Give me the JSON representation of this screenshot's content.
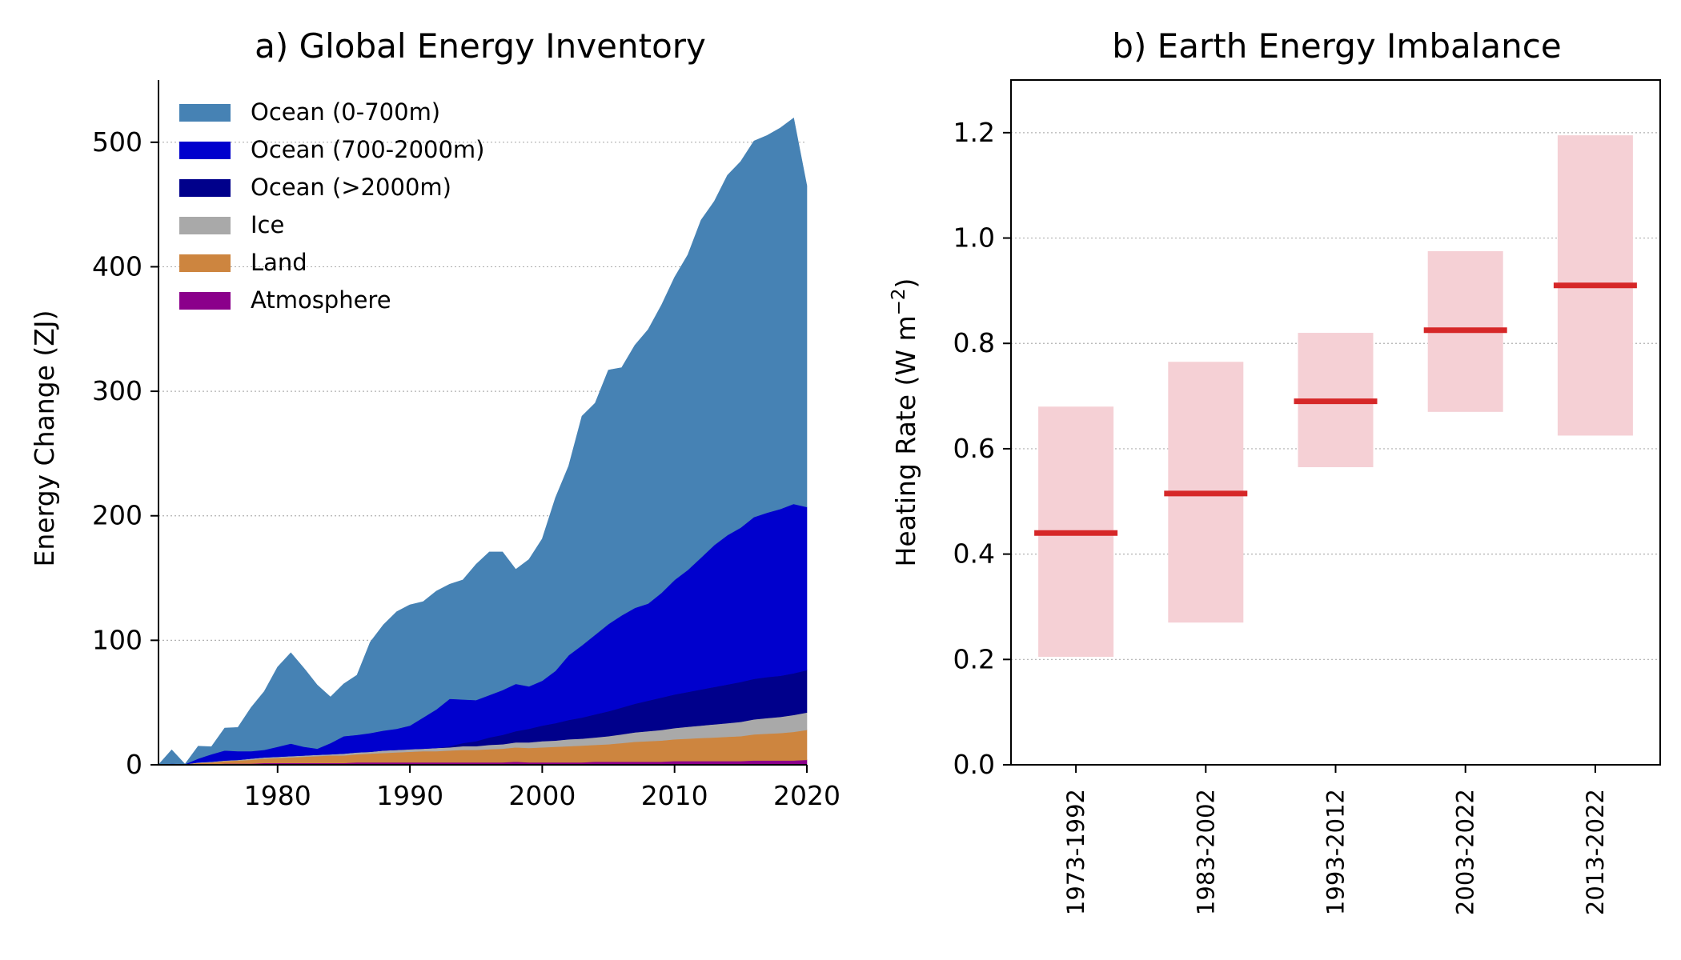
{
  "chart_data": [
    {
      "type": "area",
      "stacked": true,
      "title": "a) Global Energy Inventory",
      "xlabel": "",
      "ylabel": "Energy Change (ZJ)",
      "xlim": [
        1971,
        2020
      ],
      "ylim": [
        0,
        550
      ],
      "xticks": [
        "1980",
        "1990",
        "2000",
        "2010",
        "2020"
      ],
      "yticks": [
        "0",
        "100",
        "200",
        "300",
        "400",
        "500"
      ],
      "grid": "y-dotted",
      "legend_position": "top-left",
      "x": [
        1971,
        1972,
        1973,
        1974,
        1975,
        1976,
        1977,
        1978,
        1979,
        1980,
        1981,
        1982,
        1983,
        1984,
        1985,
        1986,
        1987,
        1988,
        1989,
        1990,
        1991,
        1992,
        1993,
        1994,
        1995,
        1996,
        1997,
        1998,
        1999,
        2000,
        2001,
        2002,
        2003,
        2004,
        2005,
        2006,
        2007,
        2008,
        2009,
        2010,
        2011,
        2012,
        2013,
        2014,
        2015,
        2016,
        2017,
        2018,
        2019,
        2020
      ],
      "series": [
        {
          "name": "Atmosphere",
          "color": "#8b008b",
          "values": [
            0,
            0.5,
            0,
            0.5,
            0.5,
            1,
            1,
            1,
            1.5,
            1.5,
            1.5,
            1.5,
            1.5,
            1.5,
            1.5,
            2,
            2,
            2,
            2,
            2,
            2,
            2,
            2,
            2,
            2,
            2,
            2,
            2.5,
            2,
            2,
            2,
            2,
            2,
            2.5,
            2.5,
            2.5,
            2.5,
            2.5,
            2.5,
            3,
            3,
            3,
            3,
            3,
            3,
            3.5,
            3.5,
            3.5,
            3.5,
            4
          ]
        },
        {
          "name": "Land",
          "color": "#cd853f",
          "values": [
            0,
            0.5,
            0.5,
            1,
            1.5,
            2,
            2.5,
            3,
            3.5,
            4,
            4.5,
            5,
            5.5,
            6,
            6,
            6.5,
            7,
            7.5,
            8,
            8.5,
            9,
            9,
            9.5,
            10,
            10,
            10.5,
            11,
            11.5,
            11.5,
            12,
            12.5,
            13,
            13.5,
            13.5,
            14,
            15,
            16,
            16.5,
            17,
            17.5,
            18,
            18.5,
            19,
            19.5,
            20,
            21,
            21.5,
            22,
            23,
            24
          ]
        },
        {
          "name": "Ice",
          "color": "#a9a9a9",
          "values": [
            0,
            0,
            0,
            0.5,
            0.5,
            0.5,
            0.5,
            1,
            1,
            1,
            1,
            1,
            1,
            1,
            1.5,
            1.5,
            1.5,
            2,
            2,
            2,
            2,
            2.5,
            2.5,
            3,
            3,
            3.5,
            3.5,
            4,
            4.5,
            5,
            5,
            5.5,
            5.5,
            6,
            6.5,
            7,
            7.5,
            8,
            8.5,
            9,
            9.5,
            10,
            10.5,
            11,
            11.5,
            12,
            12.5,
            13,
            13.5,
            14
          ]
        },
        {
          "name": "Ocean (>2000m)",
          "color": "#00008b",
          "values": [
            0,
            0,
            0,
            0,
            0,
            0,
            0,
            0,
            0,
            0,
            0,
            0,
            0,
            0,
            0,
            0,
            0,
            0,
            0,
            0,
            0,
            0,
            1,
            2.5,
            4,
            6,
            7.5,
            9,
            11,
            12.5,
            14,
            15.5,
            17,
            18.5,
            20,
            21.5,
            23,
            24.5,
            26,
            27,
            28,
            29,
            30,
            31,
            32,
            32.5,
            33,
            33,
            33.5,
            34
          ]
        },
        {
          "name": "Ocean (700-2000m)",
          "color": "#0000cd",
          "values": [
            0,
            0,
            0,
            3,
            6,
            8,
            7,
            6,
            6,
            8,
            10,
            7,
            5,
            9,
            14,
            14,
            15,
            16,
            17,
            19,
            25,
            31,
            38,
            35,
            33,
            34,
            36,
            38,
            34,
            36,
            42,
            52,
            58,
            64,
            70,
            74,
            77,
            78,
            84,
            92,
            98,
            106,
            114,
            120,
            124,
            130,
            132,
            134,
            136,
            131
          ]
        },
        {
          "name": "Ocean (0-700m)",
          "color": "#4682b4",
          "values": [
            0,
            11,
            0,
            10,
            6,
            18,
            19,
            35,
            47,
            64,
            73,
            63,
            51,
            37,
            42,
            48,
            73,
            85,
            94,
            97,
            93,
            95,
            92,
            96,
            109,
            115,
            111,
            92,
            102,
            114,
            139,
            152,
            184,
            186,
            204,
            199,
            211,
            220,
            231,
            243,
            253,
            271,
            276,
            289,
            294,
            302,
            303,
            306,
            310,
            258
          ]
        }
      ]
    },
    {
      "type": "bar",
      "title": "b) Earth Energy Imbalance",
      "xlabel": "",
      "ylabel": "Heating Rate (W m",
      "ylabel_superscript": "−2",
      "ylabel_close": ")",
      "ylim": [
        0,
        1.3
      ],
      "yticks": [
        "0.0",
        "0.2",
        "0.4",
        "0.6",
        "0.8",
        "1.0",
        "1.2"
      ],
      "grid": "y-dotted",
      "bar_color": "#f5d0d5",
      "line_color": "#d62728",
      "categories": [
        "1973-1992",
        "1983-2002",
        "1993-2012",
        "2003-2022",
        "2013-2022"
      ],
      "central": [
        0.44,
        0.515,
        0.69,
        0.825,
        0.91
      ],
      "low": [
        0.205,
        0.27,
        0.565,
        0.67,
        0.625
      ],
      "high": [
        0.68,
        0.765,
        0.82,
        0.975,
        1.195
      ]
    }
  ]
}
